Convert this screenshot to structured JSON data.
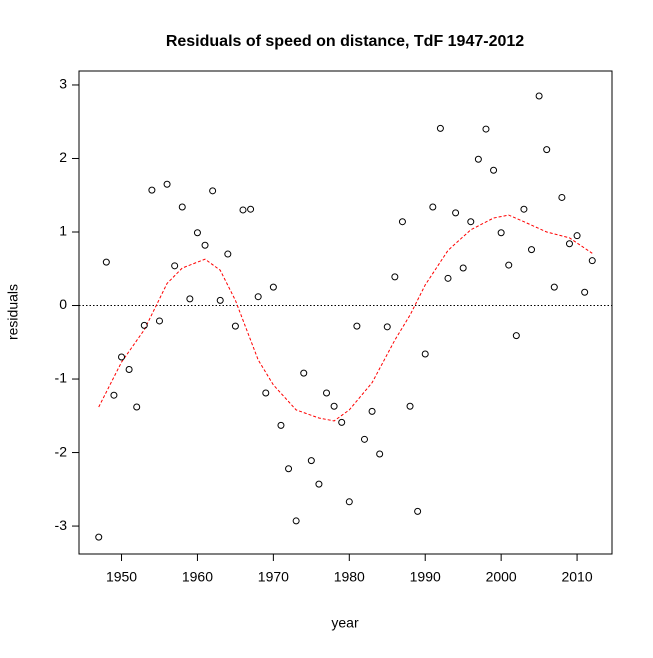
{
  "chart_data": {
    "type": "scatter",
    "title": "Residuals of speed on distance, TdF 1947-2012",
    "x_label": "year",
    "y_label": "residuals",
    "x": [
      1947,
      1948,
      1949,
      1950,
      1951,
      1952,
      1953,
      1954,
      1955,
      1956,
      1957,
      1958,
      1959,
      1960,
      1961,
      1962,
      1963,
      1964,
      1965,
      1966,
      1967,
      1968,
      1969,
      1970,
      1971,
      1972,
      1973,
      1974,
      1975,
      1976,
      1977,
      1978,
      1979,
      1980,
      1981,
      1982,
      1983,
      1984,
      1985,
      1986,
      1987,
      1988,
      1989,
      1990,
      1991,
      1992,
      1993,
      1994,
      1995,
      1996,
      1997,
      1998,
      1999,
      2000,
      2001,
      2002,
      2003,
      2004,
      2005,
      2006,
      2007,
      2008,
      2009,
      2010,
      2011,
      2012
    ],
    "series": [
      {
        "color": "#000000",
        "values": [
          -3.15,
          0.59,
          -1.22,
          -0.7,
          -0.87,
          -1.38,
          -0.27,
          1.57,
          -0.21,
          1.65,
          0.54,
          1.34,
          0.09,
          0.99,
          0.82,
          1.56,
          0.07,
          0.7,
          -0.28,
          1.3,
          1.31,
          0.12,
          -1.19,
          0.25,
          -1.63,
          -2.22,
          -2.93,
          -0.92,
          -2.11,
          -2.43,
          -1.19,
          -1.37,
          -1.59,
          -2.67,
          -0.28,
          -1.82,
          -1.44,
          -2.02,
          -0.29,
          0.39,
          1.14,
          -1.37,
          -2.8,
          -0.66,
          1.34,
          2.41,
          0.37,
          1.26,
          0.51,
          1.14,
          1.99,
          2.4,
          1.84,
          0.99,
          0.55,
          -0.41,
          1.31,
          0.76,
          2.85,
          2.12,
          0.25,
          1.47,
          0.84,
          0.95,
          0.18,
          0.61
        ]
      }
    ],
    "smooth": {
      "color": "#ff0000",
      "x": [
        1947,
        1950,
        1953,
        1956,
        1958,
        1961,
        1963,
        1965,
        1968,
        1970,
        1973,
        1976,
        1978,
        1980,
        1983,
        1986,
        1988,
        1990,
        1993,
        1996,
        1999,
        2001,
        2003,
        2006,
        2009,
        2012
      ],
      "values": [
        -1.38,
        -0.77,
        -0.33,
        0.3,
        0.51,
        0.63,
        0.48,
        0.07,
        -0.74,
        -1.08,
        -1.42,
        -1.53,
        -1.57,
        -1.42,
        -1.05,
        -0.47,
        -0.13,
        0.28,
        0.75,
        1.03,
        1.19,
        1.23,
        1.14,
        1.0,
        0.92,
        0.71
      ]
    },
    "hline": 0,
    "xlim": [
      1944.4,
      2014.6
    ],
    "ylim": [
      -3.38,
      3.19
    ],
    "xticks": [
      1950,
      1960,
      1970,
      1980,
      1990,
      2000,
      2010
    ],
    "yticks": [
      -3,
      -2,
      -1,
      0,
      1,
      2,
      3
    ]
  }
}
